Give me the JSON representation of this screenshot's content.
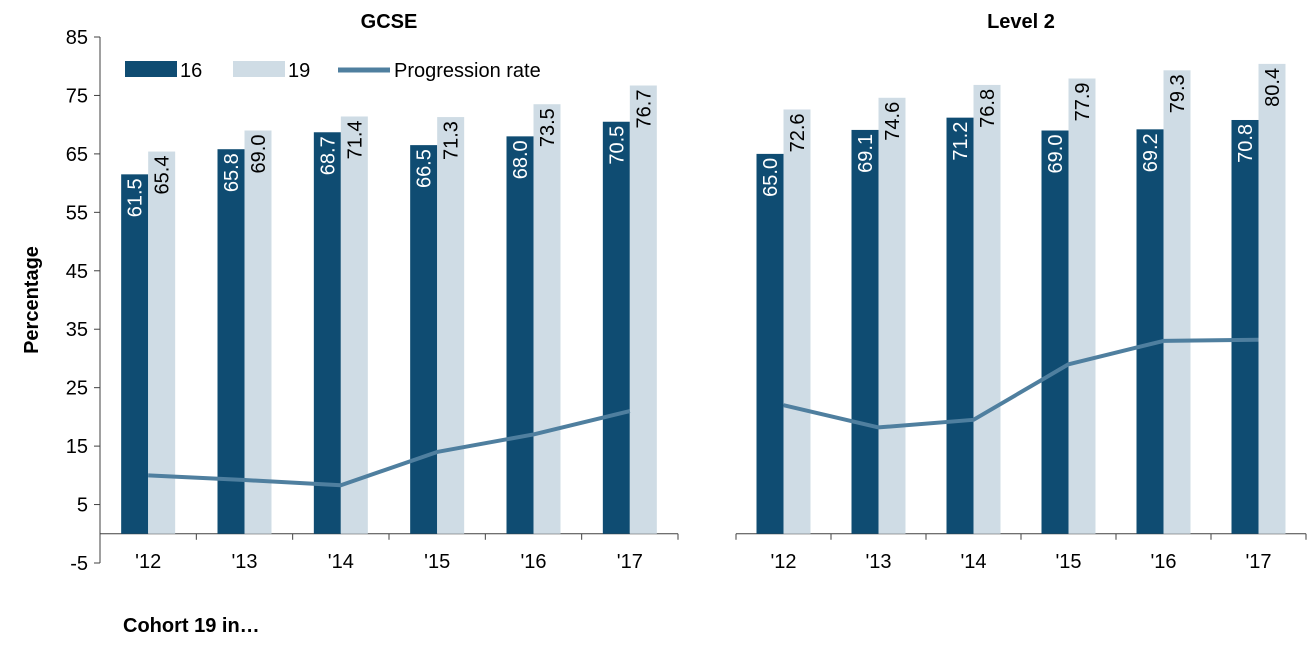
{
  "colors": {
    "series_16": "#0f4c72",
    "series_19": "#cfdce5",
    "progression": "#4f7f9f",
    "axis": "#404040"
  },
  "footnote": "Cohort 19 in…",
  "chart_data": [
    {
      "type": "bar",
      "title": "GCSE",
      "ylabel": "Percentage",
      "xlabel": "",
      "ylim": [
        -5,
        85
      ],
      "yticks": [
        -5,
        5,
        15,
        25,
        35,
        45,
        55,
        65,
        75,
        85
      ],
      "categories": [
        "'12",
        "'13",
        "'14",
        "'15",
        "'16",
        "'17"
      ],
      "legend": "top-left",
      "grid": false,
      "series": [
        {
          "name": "16",
          "kind": "bar",
          "values": [
            61.5,
            65.8,
            68.7,
            66.5,
            68.0,
            70.5
          ],
          "labels": [
            "61.5",
            "65.8",
            "68.7",
            "66.5",
            "68.0",
            "70.5"
          ]
        },
        {
          "name": "19",
          "kind": "bar",
          "values": [
            65.4,
            69.0,
            71.4,
            71.3,
            73.5,
            76.7
          ],
          "labels": [
            "65.4",
            "69.0",
            "71.4",
            "71.3",
            "73.5",
            "76.7"
          ]
        },
        {
          "name": "Progression rate",
          "kind": "line",
          "values": [
            10.0,
            9.2,
            8.3,
            14.0,
            17.0,
            21.0
          ]
        }
      ]
    },
    {
      "type": "bar",
      "title": "Level 2",
      "ylabel": "",
      "xlabel": "",
      "ylim": [
        -5,
        85
      ],
      "categories": [
        "'12",
        "'13",
        "'14",
        "'15",
        "'16",
        "'17"
      ],
      "grid": false,
      "series": [
        {
          "name": "16",
          "kind": "bar",
          "values": [
            65.0,
            69.1,
            71.2,
            69.0,
            69.2,
            70.8
          ],
          "labels": [
            "65.0",
            "69.1",
            "71.2",
            "69.0",
            "69.2",
            "70.8"
          ]
        },
        {
          "name": "19",
          "kind": "bar",
          "values": [
            72.6,
            74.6,
            76.8,
            77.9,
            79.3,
            80.4
          ],
          "labels": [
            "72.6",
            "74.6",
            "76.8",
            "77.9",
            "79.3",
            "80.4"
          ]
        },
        {
          "name": "Progression rate",
          "kind": "line",
          "values": [
            22.0,
            18.2,
            19.5,
            29.0,
            33.0,
            33.2
          ]
        }
      ]
    }
  ]
}
